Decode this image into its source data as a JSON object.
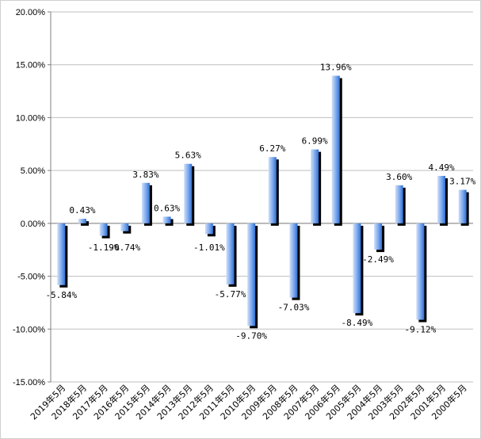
{
  "chart_data": {
    "type": "bar",
    "title": "",
    "xlabel": "",
    "ylabel": "",
    "ylim": [
      -15,
      20
    ],
    "yticks": [
      "20.00%",
      "15.00%",
      "10.00%",
      "5.00%",
      "0.00%",
      "-5.00%",
      "-10.00%",
      "-15.00%"
    ],
    "ytick_values": [
      20,
      15,
      10,
      5,
      0,
      -5,
      -10,
      -15
    ],
    "grid": true,
    "legend": "none",
    "categories": [
      "2019年5月",
      "2018年5月",
      "2017年5月",
      "2016年5月",
      "2015年5月",
      "2014年5月",
      "2013年5月",
      "2012年5月",
      "2011年5月",
      "2010年5月",
      "2009年5月",
      "2008年5月",
      "2007年5月",
      "2006年5月",
      "2005年5月",
      "2004年5月",
      "2003年5月",
      "2002年5月",
      "2001年5月",
      "2000年5月"
    ],
    "values": [
      -5.84,
      0.43,
      -1.19,
      -0.74,
      3.83,
      0.63,
      5.63,
      -1.01,
      -5.77,
      -9.7,
      6.27,
      -7.03,
      6.99,
      13.96,
      -8.49,
      -2.49,
      3.6,
      -9.12,
      4.49,
      3.17
    ],
    "data_labels": [
      "-5.84%",
      "0.43%",
      "-1.19%",
      "-0.74%",
      "3.83%",
      "0.63%",
      "5.63%",
      "-1.01%",
      "-5.77%",
      "-9.70%",
      "6.27%",
      "-7.03%",
      "6.99%",
      "13.96%",
      "-8.49%",
      "-2.49%",
      "3.60%",
      "-9.12%",
      "4.49%",
      "3.17%"
    ],
    "colors": {
      "bar_light": "#c6d9f8",
      "bar_dark": "#3a78d8",
      "shadow": "#000000",
      "grid": "#bfbfbf",
      "axis": "#808080"
    }
  }
}
